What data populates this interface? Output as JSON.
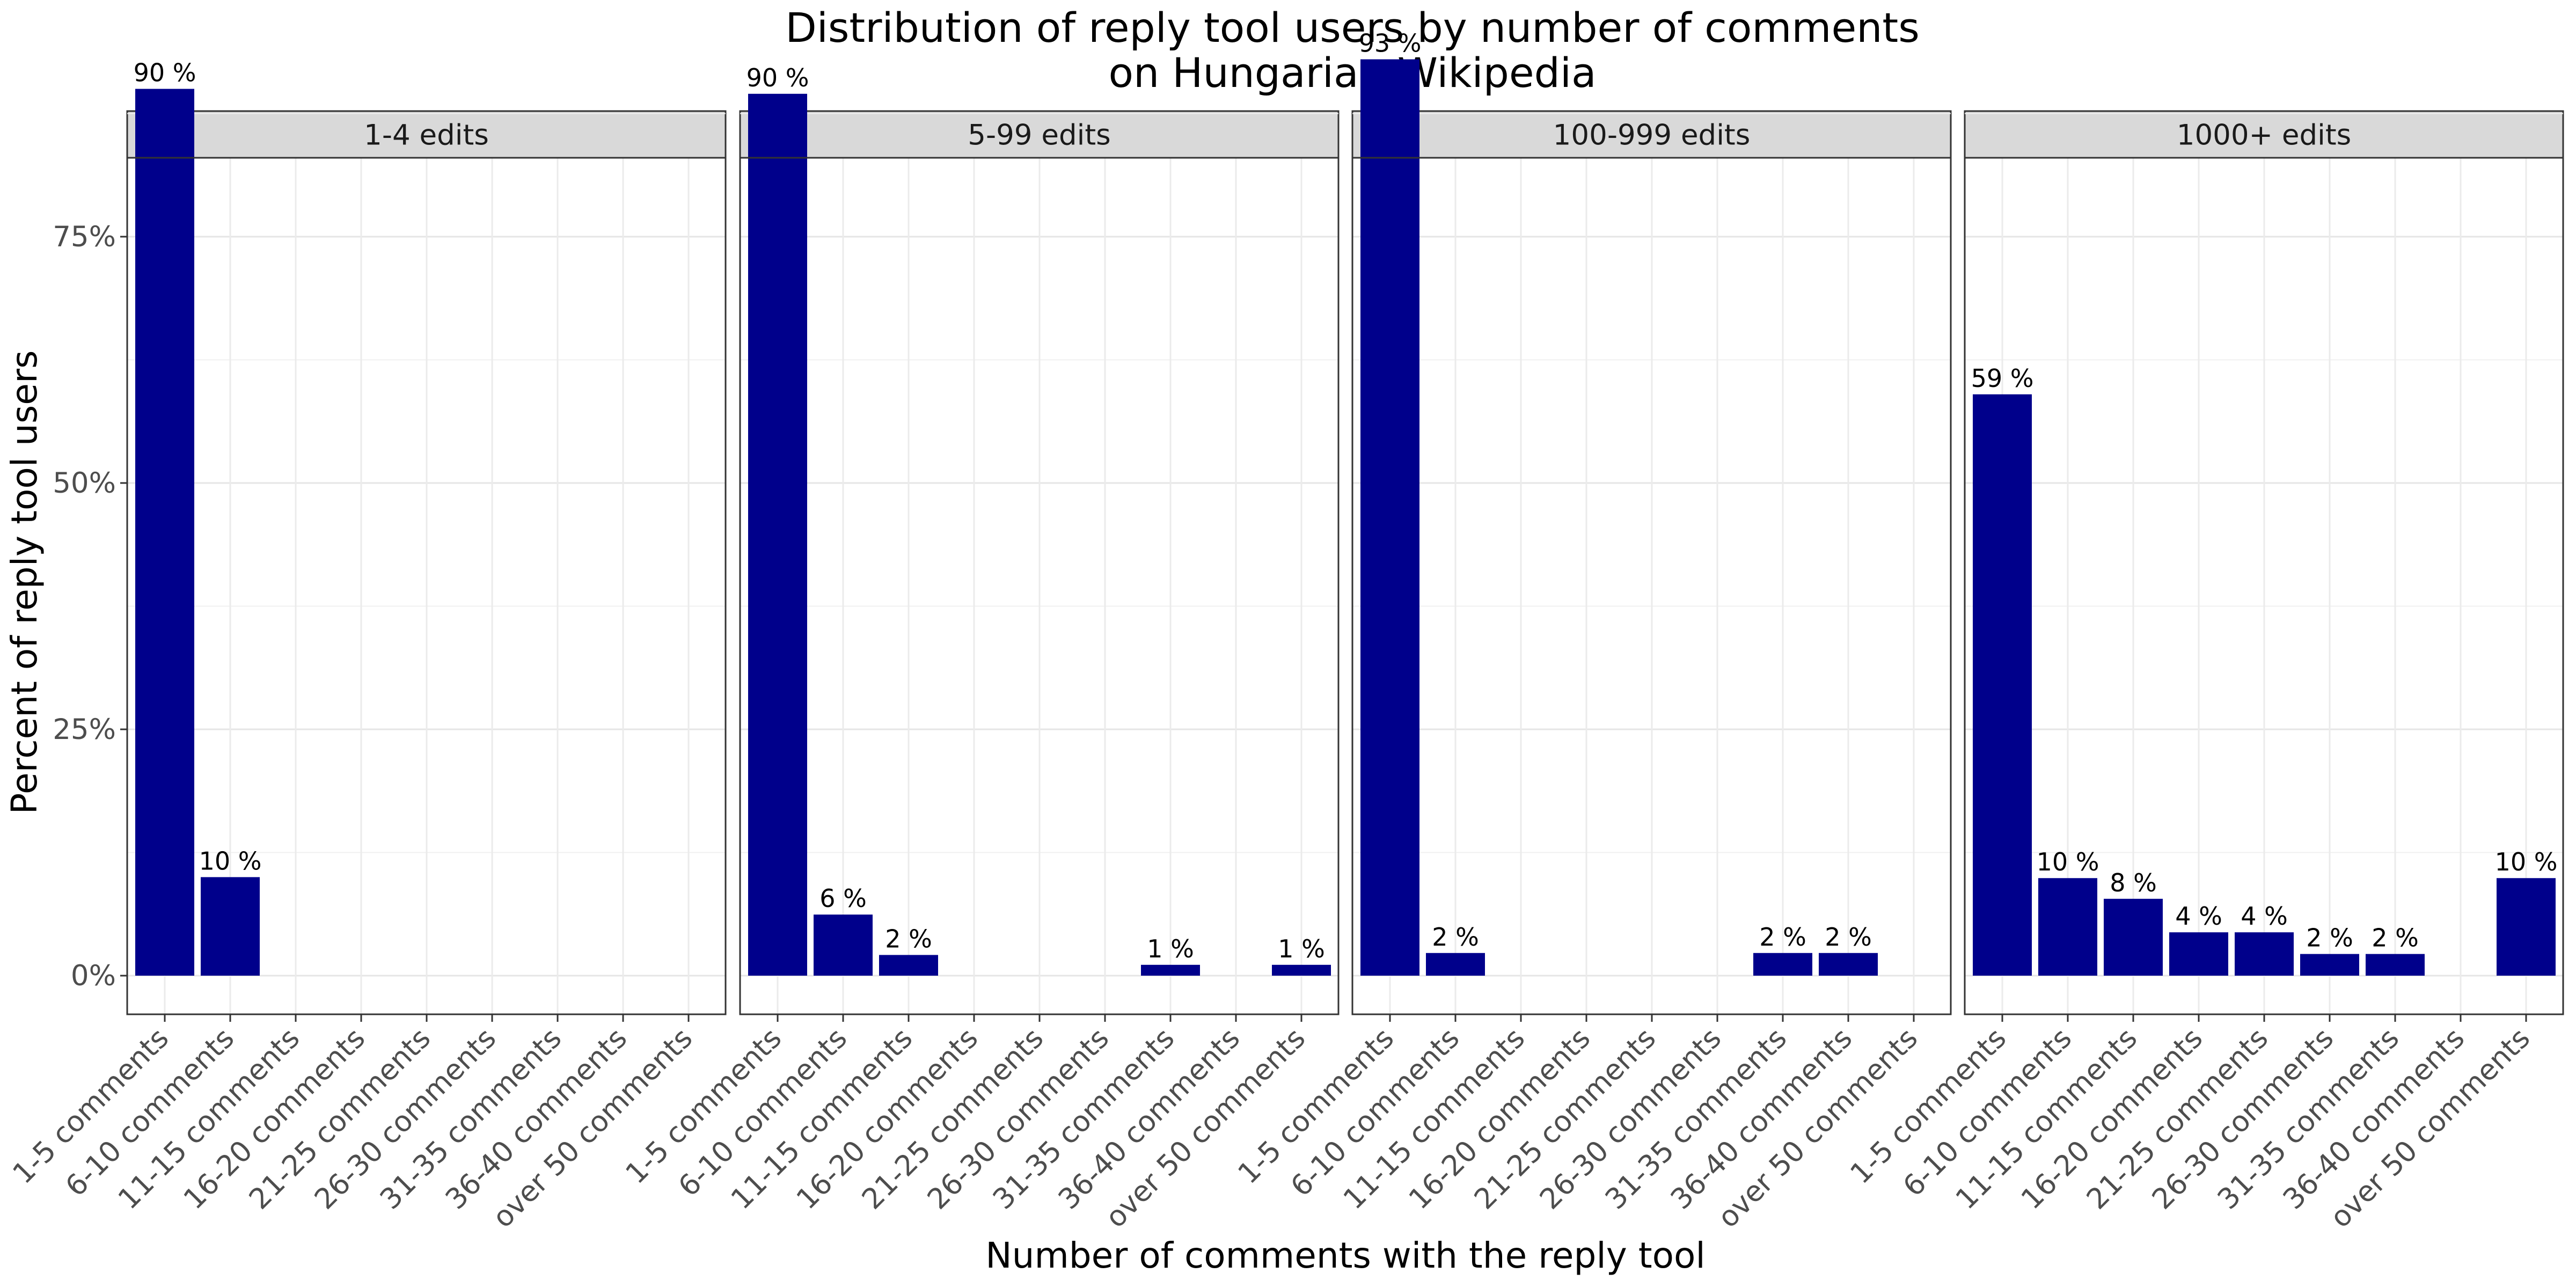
{
  "chart_data": {
    "type": "bar",
    "title_lines": [
      "Distribution of reply tool users by number of comments",
      "on Hungarian Wikipedia"
    ],
    "xlabel": "Number of comments with the reply tool",
    "ylabel": "Percent of reply tool users",
    "ylim": [
      0,
      0.97
    ],
    "yticks": [
      0,
      0.25,
      0.5,
      0.75
    ],
    "ytick_labels": [
      "0%",
      "25%",
      "50%",
      "75%"
    ],
    "grid": true,
    "bar_color": "#00008B",
    "categories": [
      "1-5 comments",
      "6-10 comments",
      "11-15 comments",
      "16-20 comments",
      "21-25 comments",
      "26-30 comments",
      "31-35 comments",
      "36-40 comments",
      "over 50 comments"
    ],
    "facets": [
      {
        "label": "1-4 edits",
        "values": [
          0.9,
          0.1,
          null,
          null,
          null,
          null,
          null,
          null,
          null
        ],
        "labels": [
          "90 %",
          "10 %",
          "",
          "",
          "",
          "",
          "",
          "",
          ""
        ]
      },
      {
        "label": "5-99 edits",
        "values": [
          0.895,
          0.062,
          0.021,
          null,
          null,
          null,
          0.011,
          null,
          0.011
        ],
        "labels": [
          "90 %",
          "6 %",
          "2 %",
          "",
          "",
          "",
          "1 %",
          "",
          "1 %"
        ]
      },
      {
        "label": "100-999 edits",
        "values": [
          0.93,
          0.023,
          null,
          null,
          null,
          null,
          0.023,
          0.023,
          null
        ],
        "labels": [
          "93 %",
          "2 %",
          "",
          "",
          "",
          "",
          "2 %",
          "2 %",
          ""
        ]
      },
      {
        "label": "1000+ edits",
        "values": [
          0.59,
          0.099,
          0.078,
          0.044,
          0.044,
          0.022,
          0.022,
          null,
          0.099
        ],
        "labels": [
          "59 %",
          "10 %",
          "8 %",
          "4 %",
          "4 %",
          "2 %",
          "2 %",
          "",
          "10 %"
        ]
      }
    ]
  }
}
